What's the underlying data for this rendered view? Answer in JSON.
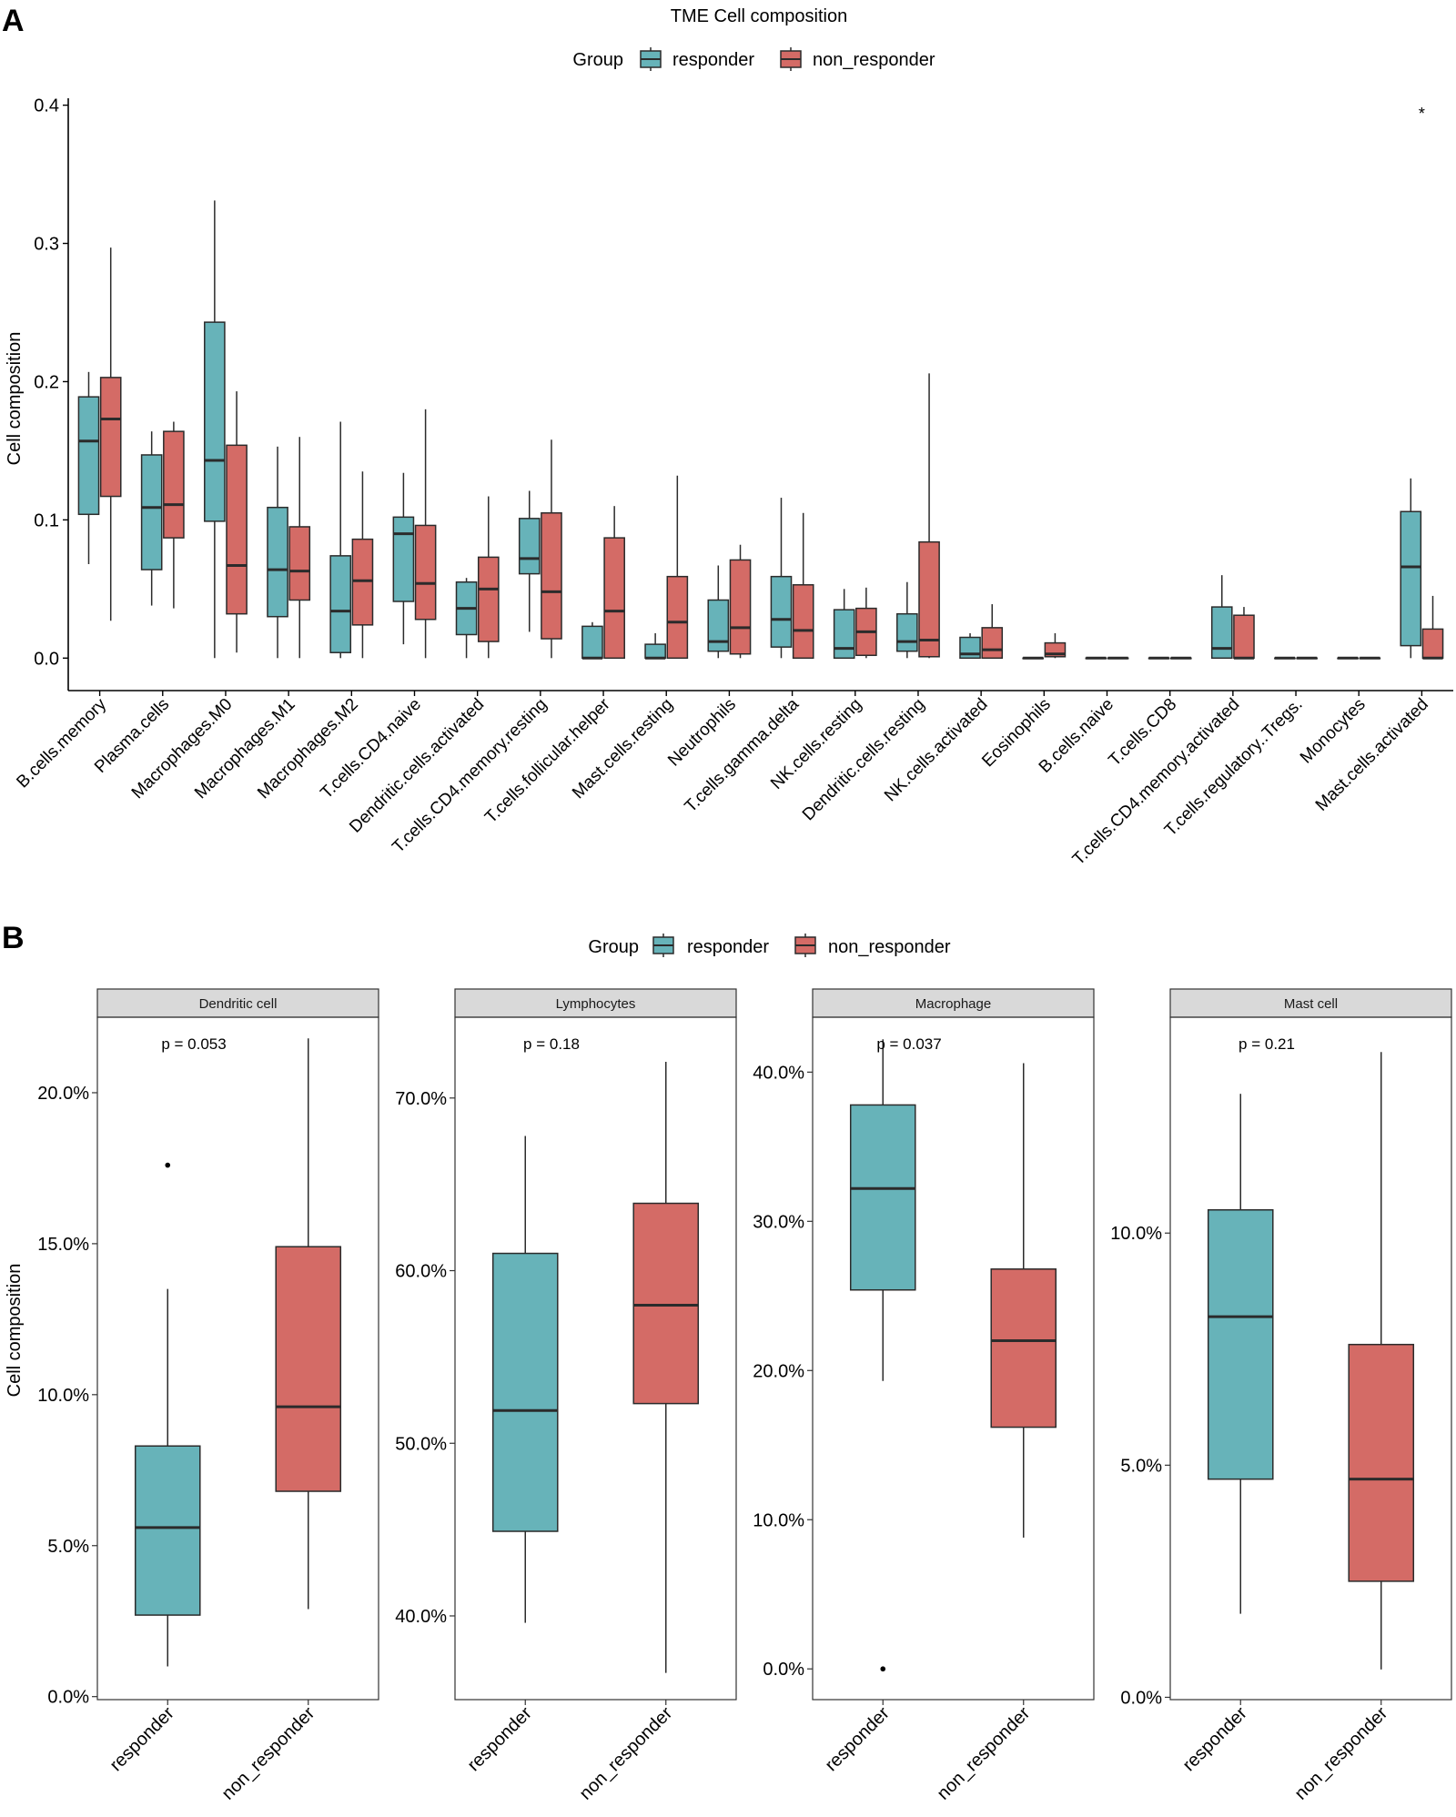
{
  "colors": {
    "responder": "#67B3B9",
    "non_responder": "#D46B66",
    "stroke": "#2b2b2b",
    "strip": "#d9d9d9"
  },
  "chart_data": [
    {
      "panel": "A",
      "type": "boxplot",
      "title": "TME Cell composition",
      "xlabel": "",
      "ylabel": "Cell composition",
      "ylim": [
        -0.0235,
        0.405
      ],
      "y_ticks": [
        0.0,
        0.1,
        0.2,
        0.3,
        0.4
      ],
      "y_tick_labels": [
        "0.0",
        "0.1",
        "0.2",
        "0.3",
        "0.4"
      ],
      "legend": {
        "title": "Group",
        "position": "top",
        "items": [
          "responder",
          "non_responder"
        ]
      },
      "categories": [
        "B.cells.memory",
        "Plasma.cells",
        "Macrophages.M0",
        "Macrophages.M1",
        "Macrophages.M2",
        "T.cells.CD4.naive",
        "Dendritic.cells.activated",
        "T.cells.CD4.memory.resting",
        "T.cells.follicular.helper",
        "Mast.cells.resting",
        "Neutrophils",
        "T.cells.gamma.delta",
        "NK.cells.resting",
        "Dendritic.cells.resting",
        "NK.cells.activated",
        "Eosinophils",
        "B.cells.naive",
        "T.cells.CD8",
        "T.cells.CD4.memory.activated",
        "T.cells.regulatory..Tregs.",
        "Monocytes",
        "Mast.cells.activated"
      ],
      "series": [
        {
          "name": "responder",
          "boxes": [
            {
              "min": 0.068,
              "q1": 0.104,
              "median": 0.157,
              "q3": 0.189,
              "max": 0.207,
              "outliers": []
            },
            {
              "min": 0.038,
              "q1": 0.064,
              "median": 0.109,
              "q3": 0.147,
              "max": 0.164,
              "outliers": []
            },
            {
              "min": 0.0,
              "q1": 0.099,
              "median": 0.143,
              "q3": 0.243,
              "max": 0.331,
              "outliers": []
            },
            {
              "min": 0.0,
              "q1": 0.03,
              "median": 0.064,
              "q3": 0.109,
              "max": 0.153,
              "outliers": []
            },
            {
              "min": 0.0,
              "q1": 0.004,
              "median": 0.034,
              "q3": 0.074,
              "max": 0.171,
              "outliers": []
            },
            {
              "min": 0.01,
              "q1": 0.041,
              "median": 0.09,
              "q3": 0.102,
              "max": 0.134,
              "outliers": []
            },
            {
              "min": 0.0,
              "q1": 0.017,
              "median": 0.036,
              "q3": 0.055,
              "max": 0.058,
              "outliers": []
            },
            {
              "min": 0.019,
              "q1": 0.061,
              "median": 0.072,
              "q3": 0.101,
              "max": 0.121,
              "outliers": []
            },
            {
              "min": 0.0,
              "q1": 0.0,
              "median": 0.0,
              "q3": 0.023,
              "max": 0.026,
              "outliers": []
            },
            {
              "min": 0.0,
              "q1": 0.0,
              "median": 0.0,
              "q3": 0.01,
              "max": 0.018,
              "outliers": []
            },
            {
              "min": 0.0,
              "q1": 0.005,
              "median": 0.012,
              "q3": 0.042,
              "max": 0.067,
              "outliers": []
            },
            {
              "min": 0.0,
              "q1": 0.008,
              "median": 0.028,
              "q3": 0.059,
              "max": 0.116,
              "outliers": []
            },
            {
              "min": 0.0,
              "q1": 0.0,
              "median": 0.007,
              "q3": 0.035,
              "max": 0.05,
              "outliers": []
            },
            {
              "min": 0.0,
              "q1": 0.005,
              "median": 0.012,
              "q3": 0.032,
              "max": 0.055,
              "outliers": []
            },
            {
              "min": 0.0,
              "q1": 0.0,
              "median": 0.003,
              "q3": 0.015,
              "max": 0.018,
              "outliers": []
            },
            {
              "min": 0.0,
              "q1": 0.0,
              "median": 0.0,
              "q3": 0.0,
              "max": 0.0,
              "outliers": []
            },
            {
              "min": 0.0,
              "q1": 0.0,
              "median": 0.0,
              "q3": 0.0,
              "max": 0.0,
              "outliers": []
            },
            {
              "min": 0.0,
              "q1": 0.0,
              "median": 0.0,
              "q3": 0.0,
              "max": 0.0,
              "outliers": []
            },
            {
              "min": 0.0,
              "q1": 0.0,
              "median": 0.007,
              "q3": 0.037,
              "max": 0.06,
              "outliers": []
            },
            {
              "min": 0.0,
              "q1": 0.0,
              "median": 0.0,
              "q3": 0.0,
              "max": 0.0,
              "outliers": []
            },
            {
              "min": 0.0,
              "q1": 0.0,
              "median": 0.0,
              "q3": 0.0,
              "max": 0.0,
              "outliers": []
            },
            {
              "min": 0.0,
              "q1": 0.009,
              "median": 0.066,
              "q3": 0.106,
              "max": 0.13,
              "outliers": []
            }
          ]
        },
        {
          "name": "non_responder",
          "boxes": [
            {
              "min": 0.027,
              "q1": 0.117,
              "median": 0.173,
              "q3": 0.203,
              "max": 0.297,
              "outliers": []
            },
            {
              "min": 0.036,
              "q1": 0.087,
              "median": 0.111,
              "q3": 0.164,
              "max": 0.171,
              "outliers": []
            },
            {
              "min": 0.004,
              "q1": 0.032,
              "median": 0.067,
              "q3": 0.154,
              "max": 0.193,
              "outliers": []
            },
            {
              "min": 0.0,
              "q1": 0.042,
              "median": 0.063,
              "q3": 0.095,
              "max": 0.16,
              "outliers": []
            },
            {
              "min": 0.0,
              "q1": 0.024,
              "median": 0.056,
              "q3": 0.086,
              "max": 0.135,
              "outliers": []
            },
            {
              "min": 0.0,
              "q1": 0.028,
              "median": 0.054,
              "q3": 0.096,
              "max": 0.18,
              "outliers": []
            },
            {
              "min": 0.0,
              "q1": 0.012,
              "median": 0.05,
              "q3": 0.073,
              "max": 0.117,
              "outliers": []
            },
            {
              "min": 0.0,
              "q1": 0.014,
              "median": 0.048,
              "q3": 0.105,
              "max": 0.158,
              "outliers": []
            },
            {
              "min": 0.0,
              "q1": 0.0,
              "median": 0.034,
              "q3": 0.087,
              "max": 0.11,
              "outliers": []
            },
            {
              "min": 0.0,
              "q1": 0.0,
              "median": 0.026,
              "q3": 0.059,
              "max": 0.132,
              "outliers": []
            },
            {
              "min": 0.0,
              "q1": 0.003,
              "median": 0.022,
              "q3": 0.071,
              "max": 0.082,
              "outliers": []
            },
            {
              "min": 0.0,
              "q1": 0.0,
              "median": 0.02,
              "q3": 0.053,
              "max": 0.105,
              "outliers": []
            },
            {
              "min": 0.0,
              "q1": 0.002,
              "median": 0.019,
              "q3": 0.036,
              "max": 0.051,
              "outliers": []
            },
            {
              "min": 0.0,
              "q1": 0.001,
              "median": 0.013,
              "q3": 0.084,
              "max": 0.206,
              "outliers": []
            },
            {
              "min": 0.0,
              "q1": 0.0,
              "median": 0.006,
              "q3": 0.022,
              "max": 0.039,
              "outliers": []
            },
            {
              "min": 0.0,
              "q1": 0.001,
              "median": 0.003,
              "q3": 0.011,
              "max": 0.018,
              "outliers": []
            },
            {
              "min": 0.0,
              "q1": 0.0,
              "median": 0.0,
              "q3": 0.0,
              "max": 0.0,
              "outliers": []
            },
            {
              "min": 0.0,
              "q1": 0.0,
              "median": 0.0,
              "q3": 0.0,
              "max": 0.0,
              "outliers": []
            },
            {
              "min": 0.0,
              "q1": 0.0,
              "median": 0.0,
              "q3": 0.031,
              "max": 0.037,
              "outliers": []
            },
            {
              "min": 0.0,
              "q1": 0.0,
              "median": 0.0,
              "q3": 0.0,
              "max": 0.0,
              "outliers": []
            },
            {
              "min": 0.0,
              "q1": 0.0,
              "median": 0.0,
              "q3": 0.0,
              "max": 0.0,
              "outliers": []
            },
            {
              "min": 0.0,
              "q1": 0.0,
              "median": 0.0,
              "q3": 0.021,
              "max": 0.045,
              "outliers": []
            }
          ]
        }
      ],
      "annotations": [
        {
          "text": "*",
          "category": "Mast.cells.activated",
          "y": 0.395
        }
      ]
    },
    {
      "panel": "B",
      "type": "boxplot",
      "ylabel": "Cell composition",
      "legend": {
        "title": "Group",
        "position": "top",
        "items": [
          "responder",
          "non_responder"
        ]
      },
      "categories": [
        "responder",
        "non_responder"
      ],
      "facets": [
        {
          "title": "Dendritic cell",
          "p_label": "p = 0.053",
          "ylim": [
            -0.001,
            0.225
          ],
          "y_ticks": [
            0.0,
            0.05,
            0.1,
            0.15,
            0.2
          ],
          "y_tick_labels": [
            "0.0%",
            "5.0%",
            "10.0%",
            "15.0%",
            "20.0%"
          ],
          "boxes": [
            {
              "min": 0.01,
              "q1": 0.027,
              "median": 0.056,
              "q3": 0.083,
              "max": 0.135,
              "outliers": [
                0.176
              ]
            },
            {
              "min": 0.029,
              "q1": 0.068,
              "median": 0.096,
              "q3": 0.149,
              "max": 0.218,
              "outliers": []
            }
          ]
        },
        {
          "title": "Lymphocytes",
          "p_label": "p = 0.18",
          "ylim": [
            0.3515,
            0.7468
          ],
          "y_ticks": [
            0.4,
            0.5,
            0.6,
            0.7
          ],
          "y_tick_labels": [
            "40.0%",
            "50.0%",
            "60.0%",
            "70.0%"
          ],
          "boxes": [
            {
              "min": 0.396,
              "q1": 0.449,
              "median": 0.519,
              "q3": 0.61,
              "max": 0.678,
              "outliers": []
            },
            {
              "min": 0.367,
              "q1": 0.523,
              "median": 0.58,
              "q3": 0.639,
              "max": 0.721,
              "outliers": []
            }
          ]
        },
        {
          "title": "Macrophage",
          "p_label": "p = 0.037",
          "ylim": [
            -0.0206,
            0.4368
          ],
          "y_ticks": [
            0.0,
            0.1,
            0.2,
            0.3,
            0.4
          ],
          "y_tick_labels": [
            "0.0%",
            "10.0%",
            "20.0%",
            "30.0%",
            "40.0%"
          ],
          "boxes": [
            {
              "min": 0.193,
              "q1": 0.254,
              "median": 0.322,
              "q3": 0.378,
              "max": 0.422,
              "outliers": [
                0.0
              ]
            },
            {
              "min": 0.088,
              "q1": 0.162,
              "median": 0.22,
              "q3": 0.268,
              "max": 0.406,
              "outliers": []
            }
          ]
        },
        {
          "title": "Mast cell",
          "p_label": "p = 0.21",
          "ylim": [
            -0.0005,
            0.1465
          ],
          "y_ticks": [
            0.0,
            0.05,
            0.1
          ],
          "y_tick_labels": [
            "0.0%",
            "5.0%",
            "10.0%"
          ],
          "boxes": [
            {
              "min": 0.018,
              "q1": 0.047,
              "median": 0.082,
              "q3": 0.105,
              "max": 0.13,
              "outliers": []
            },
            {
              "min": 0.006,
              "q1": 0.025,
              "median": 0.047,
              "q3": 0.076,
              "max": 0.139,
              "outliers": []
            }
          ]
        }
      ]
    }
  ],
  "panel_labels": [
    "A",
    "B"
  ]
}
